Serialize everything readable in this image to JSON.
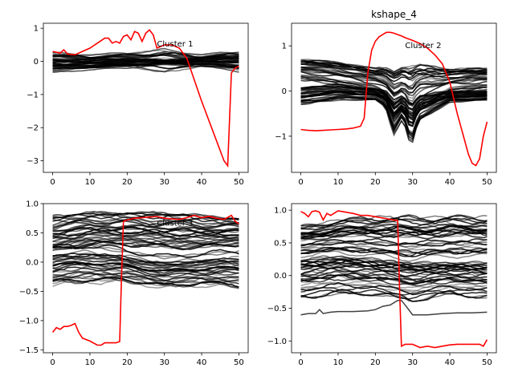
{
  "figure": {
    "title": "kshape_4",
    "background": "#ffffff",
    "centroid_color": "#ff0000",
    "member_color": "#000000"
  },
  "chart_data": [
    {
      "type": "line",
      "title": "",
      "annotation": "Cluster 1",
      "annotation_at": [
        28,
        0.45
      ],
      "xlim": [
        -2.5,
        52.5
      ],
      "ylim": [
        -3.35,
        1.15
      ],
      "xticks": [
        0,
        10,
        20,
        30,
        40,
        50
      ],
      "yticks": [
        -3,
        -2,
        -1,
        0,
        1
      ],
      "ytick_labels": [
        "−3",
        "−2",
        "−1",
        "0",
        "1"
      ],
      "members": {
        "count": 40,
        "bands": [
          {
            "lo": [
              -0.15,
              -0.2,
              -0.15,
              -0.35,
              -0.15,
              -0.25
            ],
            "hi": [
              0.25,
              0.2,
              0.25,
              0.35,
              0.2,
              0.3
            ]
          },
          {
            "lo": [
              -0.35,
              -0.25,
              -0.2,
              -0.1,
              -0.15,
              -0.3
            ],
            "hi": [
              0.05,
              0.1,
              0.1,
              0.05,
              0.1,
              0.2
            ]
          }
        ]
      },
      "centroid": {
        "x": [
          0,
          2,
          3,
          4,
          6,
          8,
          10,
          12,
          14,
          15,
          16,
          17,
          18,
          19,
          20,
          21,
          22,
          23,
          24,
          25,
          26,
          27,
          28,
          30,
          32,
          34,
          36,
          40,
          44,
          46,
          47,
          48,
          49,
          50
        ],
        "y": [
          0.3,
          0.25,
          0.35,
          0.22,
          0.2,
          0.3,
          0.4,
          0.55,
          0.7,
          0.7,
          0.55,
          0.6,
          0.55,
          0.75,
          0.8,
          0.65,
          0.9,
          0.85,
          0.6,
          0.85,
          0.95,
          0.8,
          0.4,
          0.5,
          0.5,
          0.4,
          0.1,
          -1.2,
          -2.4,
          -3.0,
          -3.15,
          -0.35,
          -0.2,
          -0.15
        ]
      }
    },
    {
      "type": "line",
      "title": "kshape_4",
      "annotation": "Cluster 2",
      "annotation_at": [
        28,
        0.95
      ],
      "xlim": [
        -2.5,
        52.5
      ],
      "ylim": [
        -1.8,
        1.5
      ],
      "xticks": [
        0,
        10,
        20,
        30,
        40,
        50
      ],
      "yticks": [
        -1,
        0,
        1
      ],
      "ytick_labels": [
        "−1",
        "0",
        "1"
      ],
      "members": {
        "count": 60,
        "bands": [
          {
            "lo": [
              0.25,
              0.15,
              0.0,
              -0.5,
              -0.05,
              0.05
            ],
            "hi": [
              0.7,
              0.65,
              0.5,
              0.6,
              0.5,
              0.5
            ]
          },
          {
            "lo": [
              -0.3,
              -0.2,
              -0.2,
              -0.75,
              -0.25,
              -0.2
            ],
            "hi": [
              0.1,
              0.15,
              0.05,
              -0.1,
              0.0,
              0.0
            ]
          }
        ]
      },
      "centroid": {
        "x": [
          0,
          2,
          4,
          6,
          8,
          10,
          12,
          14,
          16,
          17,
          18,
          19,
          20,
          21,
          22,
          23,
          24,
          25,
          26,
          27,
          28,
          30,
          32,
          34,
          36,
          38,
          40,
          42,
          44,
          45,
          46,
          47,
          48,
          49,
          50
        ],
        "y": [
          -0.85,
          -0.87,
          -0.88,
          -0.87,
          -0.86,
          -0.85,
          -0.84,
          -0.82,
          -0.78,
          -0.6,
          0.4,
          0.9,
          1.1,
          1.2,
          1.25,
          1.3,
          1.3,
          1.28,
          1.25,
          1.22,
          1.18,
          1.12,
          1.05,
          0.95,
          0.8,
          0.6,
          0.2,
          -0.5,
          -1.1,
          -1.4,
          -1.6,
          -1.65,
          -1.5,
          -1.0,
          -0.68
        ]
      }
    },
    {
      "type": "line",
      "title": "",
      "annotation": "Cluster 3",
      "annotation_at": [
        28,
        0.62
      ],
      "xlim": [
        -2.5,
        52.5
      ],
      "ylim": [
        -1.55,
        1.0
      ],
      "xticks": [
        0,
        10,
        20,
        30,
        40,
        50
      ],
      "yticks": [
        -1.5,
        -1.0,
        -0.5,
        0.0,
        0.5,
        1.0
      ],
      "ytick_labels": [
        "−1.5",
        "−1.0",
        "−0.5",
        "0.0",
        "0.5",
        "1.0"
      ],
      "members": {
        "count": 70,
        "bands": [
          {
            "lo": [
              0.2,
              0.3,
              0.3,
              0.25,
              0.25,
              0.3
            ],
            "hi": [
              0.8,
              0.85,
              0.85,
              0.85,
              0.8,
              0.75
            ]
          },
          {
            "lo": [
              -0.4,
              -0.35,
              -0.35,
              -0.45,
              -0.4,
              -0.45
            ],
            "hi": [
              0.25,
              0.3,
              0.2,
              0.1,
              0.15,
              0.2
            ]
          }
        ]
      },
      "centroid": {
        "x": [
          0,
          1,
          2,
          3,
          4,
          5,
          6,
          7,
          8,
          10,
          12,
          13,
          14,
          16,
          17,
          18,
          18.5,
          19,
          20,
          22,
          24,
          26,
          28,
          30,
          32,
          34,
          36,
          38,
          40,
          42,
          44,
          46,
          48,
          49,
          50
        ],
        "y": [
          -1.2,
          -1.12,
          -1.15,
          -1.1,
          -1.1,
          -1.08,
          -1.05,
          -1.2,
          -1.3,
          -1.35,
          -1.42,
          -1.42,
          -1.38,
          -1.38,
          -1.38,
          -1.36,
          -0.2,
          0.7,
          0.72,
          0.75,
          0.76,
          0.77,
          0.78,
          0.75,
          0.74,
          0.73,
          0.76,
          0.8,
          0.76,
          0.78,
          0.75,
          0.73,
          0.8,
          0.7,
          0.65
        ]
      }
    },
    {
      "type": "line",
      "title": "",
      "annotation": "",
      "xlim": [
        -2.5,
        52.5
      ],
      "ylim": [
        -1.18,
        1.1
      ],
      "xticks": [
        0,
        10,
        20,
        30,
        40,
        50
      ],
      "yticks": [
        -1.0,
        -0.5,
        0.0,
        0.5,
        1.0
      ],
      "ytick_labels": [
        "−1.0",
        "−0.5",
        "0.0",
        "0.5",
        "1.0"
      ],
      "members": {
        "count": 65,
        "bands": [
          {
            "lo": [
              0.3,
              0.35,
              0.3,
              0.25,
              0.3,
              0.3
            ],
            "hi": [
              0.75,
              0.85,
              0.9,
              0.9,
              0.9,
              0.9
            ]
          },
          {
            "lo": [
              -0.35,
              -0.3,
              -0.3,
              -0.4,
              -0.3,
              -0.35
            ],
            "hi": [
              0.25,
              0.3,
              0.25,
              0.2,
              0.2,
              0.2
            ]
          }
        ],
        "extra": {
          "x": [
            0,
            2,
            4,
            5,
            6,
            8,
            10,
            14,
            18,
            20,
            22,
            24,
            26,
            27,
            28,
            30,
            34,
            38,
            42,
            46,
            50
          ],
          "y": [
            -0.6,
            -0.58,
            -0.58,
            -0.52,
            -0.58,
            -0.56,
            -0.55,
            -0.55,
            -0.54,
            -0.52,
            -0.47,
            -0.45,
            -0.38,
            -0.38,
            -0.45,
            -0.6,
            -0.6,
            -0.58,
            -0.57,
            -0.57,
            -0.56
          ]
        }
      },
      "centroid": {
        "x": [
          0,
          1,
          2,
          3,
          4,
          5,
          6,
          7,
          8,
          10,
          12,
          14,
          16,
          18,
          20,
          22,
          24,
          25,
          26,
          26.5,
          27,
          28,
          30,
          32,
          34,
          36,
          38,
          40,
          42,
          44,
          46,
          48,
          49,
          50
        ],
        "y": [
          0.98,
          0.95,
          0.9,
          0.98,
          0.99,
          0.97,
          0.85,
          0.95,
          0.92,
          0.99,
          0.97,
          0.95,
          0.92,
          0.92,
          0.9,
          0.88,
          0.86,
          0.85,
          0.84,
          -0.2,
          -1.08,
          -1.05,
          -1.05,
          -1.1,
          -1.08,
          -1.1,
          -1.08,
          -1.06,
          -1.05,
          -1.05,
          -1.05,
          -1.05,
          -1.08,
          -0.98
        ]
      }
    }
  ]
}
